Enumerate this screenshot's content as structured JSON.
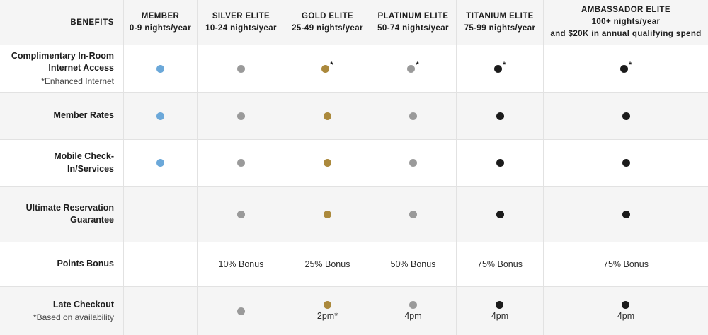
{
  "table": {
    "header": {
      "benefits_label": "BENEFITS",
      "tiers": [
        {
          "name": "MEMBER",
          "sub": "0-9 nights/year"
        },
        {
          "name": "SILVER ELITE",
          "sub": "10-24 nights/year"
        },
        {
          "name": "GOLD ELITE",
          "sub": "25-49 nights/year"
        },
        {
          "name": "PLATINUM ELITE",
          "sub": "50-74 nights/year"
        },
        {
          "name": "TITANIUM ELITE",
          "sub": "75-99 nights/year"
        },
        {
          "name": "AMBASSADOR ELITE",
          "sub": "100+ nights/year",
          "sub2": "and $20K in annual qualifying spend"
        }
      ]
    },
    "dot_colors": {
      "blue": "#6ba8d9",
      "gray": "#9a9a9a",
      "gold": "#ab893c",
      "black": "#1b1b1b"
    },
    "rows": [
      {
        "label": "Complimentary In-Room Internet Access",
        "sublabel": "*Enhanced Internet",
        "link": false,
        "cells": [
          {
            "type": "dot",
            "color": "blue"
          },
          {
            "type": "dot",
            "color": "gray"
          },
          {
            "type": "dot",
            "color": "gold",
            "note": "*"
          },
          {
            "type": "dot",
            "color": "gray",
            "note": "*"
          },
          {
            "type": "dot",
            "color": "black",
            "note": "*"
          },
          {
            "type": "dot",
            "color": "black",
            "note": "*"
          }
        ]
      },
      {
        "label": "Member Rates",
        "link": false,
        "cells": [
          {
            "type": "dot",
            "color": "blue"
          },
          {
            "type": "dot",
            "color": "gray"
          },
          {
            "type": "dot",
            "color": "gold"
          },
          {
            "type": "dot",
            "color": "gray"
          },
          {
            "type": "dot",
            "color": "black"
          },
          {
            "type": "dot",
            "color": "black"
          }
        ]
      },
      {
        "label": "Mobile Check-In/Services",
        "link": false,
        "cells": [
          {
            "type": "dot",
            "color": "blue"
          },
          {
            "type": "dot",
            "color": "gray"
          },
          {
            "type": "dot",
            "color": "gold"
          },
          {
            "type": "dot",
            "color": "gray"
          },
          {
            "type": "dot",
            "color": "black"
          },
          {
            "type": "dot",
            "color": "black"
          }
        ]
      },
      {
        "label": "Ultimate Reservation Guarantee",
        "link": true,
        "cells": [
          {
            "type": "empty"
          },
          {
            "type": "dot",
            "color": "gray"
          },
          {
            "type": "dot",
            "color": "gold"
          },
          {
            "type": "dot",
            "color": "gray"
          },
          {
            "type": "dot",
            "color": "black"
          },
          {
            "type": "dot",
            "color": "black"
          }
        ]
      },
      {
        "label": "Points Bonus",
        "link": false,
        "cells": [
          {
            "type": "empty"
          },
          {
            "type": "text",
            "text": "10% Bonus"
          },
          {
            "type": "text",
            "text": "25% Bonus"
          },
          {
            "type": "text",
            "text": "50% Bonus"
          },
          {
            "type": "text",
            "text": "75% Bonus"
          },
          {
            "type": "text",
            "text": "75% Bonus"
          }
        ]
      },
      {
        "label": "Late Checkout",
        "sublabel": "*Based on availability",
        "link": false,
        "cells": [
          {
            "type": "empty"
          },
          {
            "type": "dot",
            "color": "gray"
          },
          {
            "type": "dot-text",
            "color": "gold",
            "text": "2pm*"
          },
          {
            "type": "dot-text",
            "color": "gray",
            "text": "4pm"
          },
          {
            "type": "dot-text",
            "color": "black",
            "text": "4pm"
          },
          {
            "type": "dot-text",
            "color": "black",
            "text": "4pm"
          }
        ]
      }
    ]
  }
}
